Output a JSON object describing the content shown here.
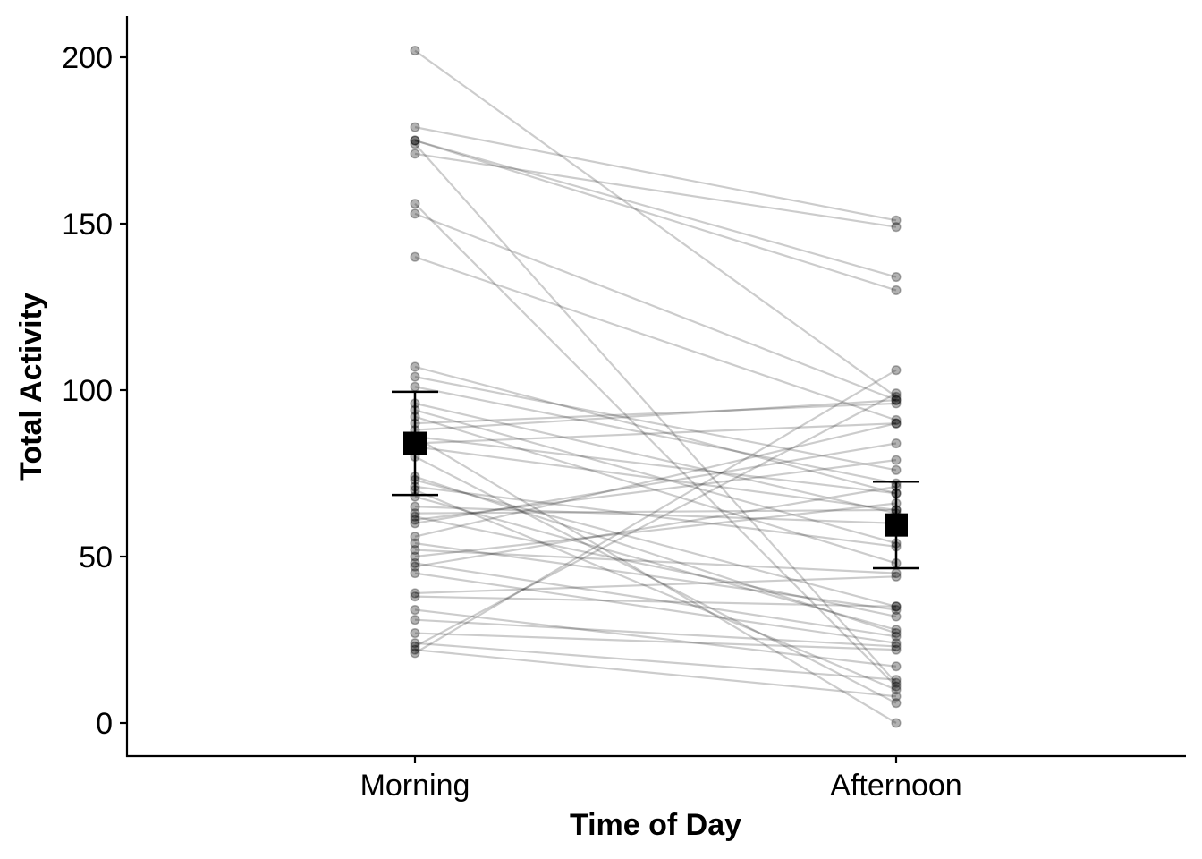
{
  "chart_data": {
    "type": "scatter",
    "title": "",
    "xlabel": "Time of Day",
    "ylabel": "Total Activity",
    "categories": [
      "Morning",
      "Afternoon"
    ],
    "ylim": [
      -10,
      213
    ],
    "yticks": [
      0,
      50,
      100,
      150,
      200
    ],
    "grid": false,
    "legend": "none",
    "pairs": [
      [
        202,
        98
      ],
      [
        179,
        151
      ],
      [
        175,
        134
      ],
      [
        175,
        130
      ],
      [
        174,
        12
      ],
      [
        171,
        149
      ],
      [
        156,
        11
      ],
      [
        153,
        97
      ],
      [
        140,
        91
      ],
      [
        107,
        69
      ],
      [
        104,
        76
      ],
      [
        101,
        72
      ],
      [
        96,
        63
      ],
      [
        94,
        54
      ],
      [
        92,
        48
      ],
      [
        90,
        96
      ],
      [
        88,
        97
      ],
      [
        86,
        69
      ],
      [
        84,
        90
      ],
      [
        83,
        64
      ],
      [
        74,
        27
      ],
      [
        73,
        35
      ],
      [
        71,
        53
      ],
      [
        68,
        28
      ],
      [
        65,
        60
      ],
      [
        63,
        64
      ],
      [
        61,
        79
      ],
      [
        60,
        84
      ],
      [
        56,
        90
      ],
      [
        54,
        34
      ],
      [
        52,
        45
      ],
      [
        50,
        66
      ],
      [
        47,
        71
      ],
      [
        39,
        44
      ],
      [
        38,
        35
      ],
      [
        34,
        17
      ],
      [
        31,
        23
      ],
      [
        27,
        22
      ],
      [
        24,
        13
      ],
      [
        23,
        99
      ],
      [
        21,
        106
      ],
      [
        22,
        8
      ],
      [
        70,
        10
      ],
      [
        80,
        6
      ],
      [
        86,
        0
      ],
      [
        48,
        26
      ],
      [
        62,
        32
      ],
      [
        45,
        24
      ]
    ],
    "summary": [
      {
        "category": "Morning",
        "mean": 84,
        "lower": 68.5,
        "upper": 99.5
      },
      {
        "category": "Afternoon",
        "mean": 59.5,
        "lower": 46.5,
        "upper": 72.5
      }
    ]
  }
}
